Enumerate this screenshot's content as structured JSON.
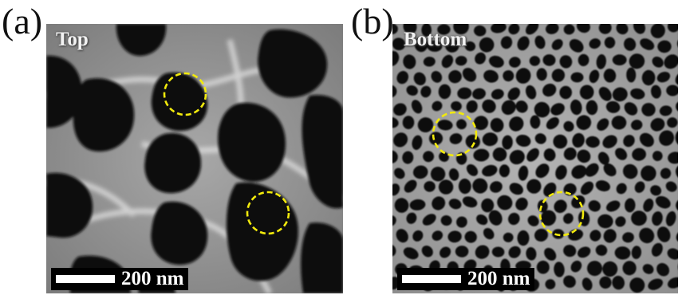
{
  "figure": {
    "panel_a": {
      "letter": "(a)",
      "tag": "Top",
      "scale_label": "200 nm"
    },
    "panel_b": {
      "letter": "(b)",
      "tag": "Bottom",
      "scale_label": "200 nm"
    },
    "colors": {
      "highlight_circle": "#f2ea0c",
      "membrane_gray": "#9a9a9a",
      "pore_black": "#0e0e0e",
      "scale_bar": "#ffffff"
    }
  }
}
